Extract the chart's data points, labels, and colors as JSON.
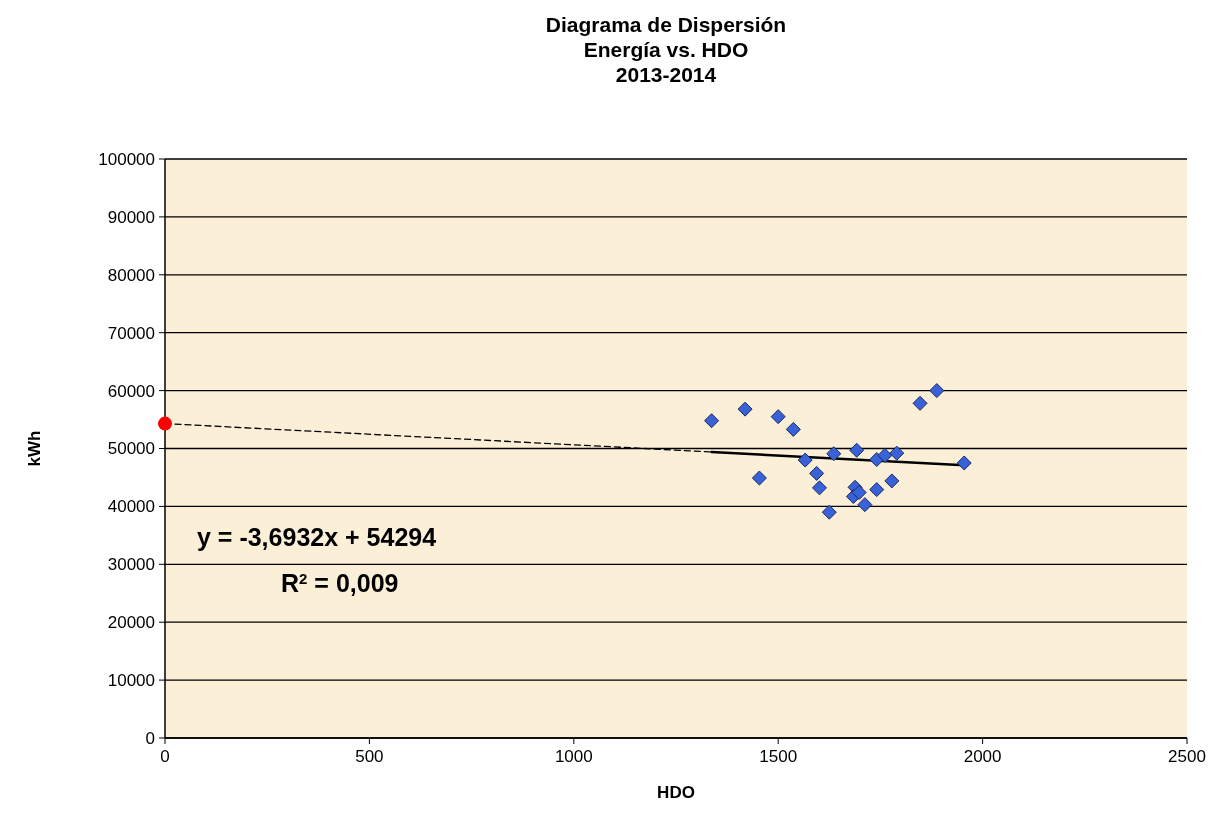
{
  "chart_data": {
    "type": "scatter",
    "title": "Diagrama de Dispersión\nEnergía vs. HDO\n2013-2014",
    "xlabel": "HDO",
    "ylabel": "kWh",
    "xlim": [
      0,
      2500
    ],
    "xticks": [
      0,
      500,
      1000,
      1500,
      2000,
      2500
    ],
    "ylim": [
      0,
      100000
    ],
    "yticks": [
      0,
      10000,
      20000,
      30000,
      40000,
      50000,
      60000,
      70000,
      80000,
      90000,
      100000
    ],
    "grid": "y",
    "series": [
      {
        "type": "line",
        "color": "#000000",
        "line_style": "dashed",
        "marker": "none",
        "x": [
          0,
          1337
        ],
        "values": [
          54300,
          49400
        ]
      },
      {
        "type": "line",
        "color": "#000000",
        "line_style": "solid",
        "marker": "none",
        "x": [
          1337,
          1955
        ],
        "values": [
          49400,
          47100
        ]
      },
      {
        "color": "#3a62d8",
        "marker": "diamond",
        "x": [
          1337,
          1419,
          1500,
          1537,
          1454,
          1566,
          1594,
          1601,
          1625,
          1636,
          1692,
          1688,
          1684,
          1698,
          1712,
          1741,
          1741,
          1761,
          1790,
          1778,
          1847,
          1888,
          1955
        ],
        "values": [
          54800,
          56800,
          55500,
          53300,
          44900,
          48000,
          45700,
          43200,
          39000,
          49100,
          49700,
          43300,
          41700,
          42400,
          40300,
          42900,
          48100,
          48800,
          49200,
          44400,
          57800,
          60000,
          47500
        ]
      },
      {
        "color": "#ff0000",
        "marker": "circle",
        "x": [
          0
        ],
        "values": [
          54300
        ]
      }
    ],
    "annotations": [
      "y = -3,6932x + 54294",
      "R$^{2}$ = 0,009"
    ]
  }
}
